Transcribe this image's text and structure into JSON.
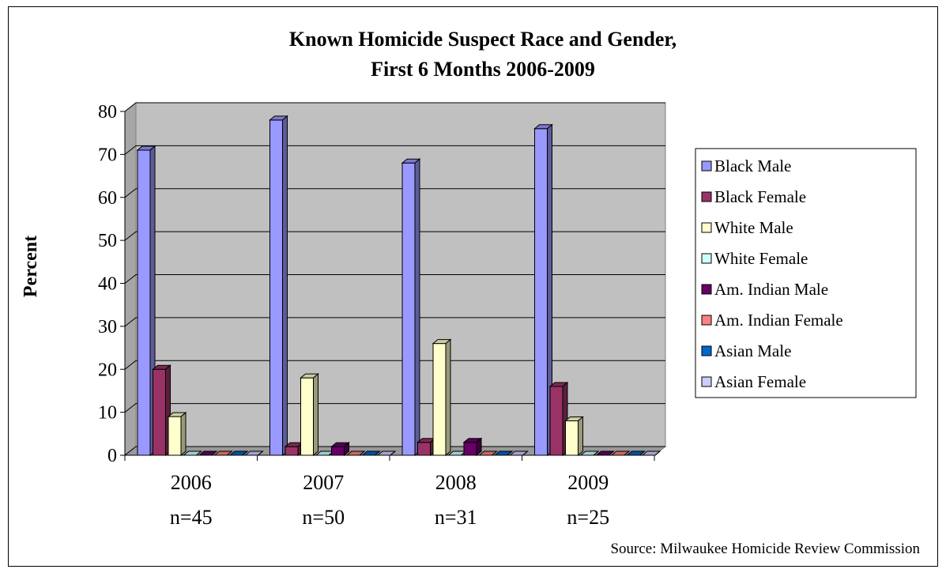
{
  "chart_data": {
    "type": "bar",
    "title": "Known Homicide Suspect Race and Gender,",
    "subtitle": "First 6 Months 2006-2009",
    "ylabel": "Percent",
    "xlabel": "",
    "ylim": [
      0,
      80
    ],
    "yticks": [
      0,
      10,
      20,
      30,
      40,
      50,
      60,
      70,
      80
    ],
    "grid": true,
    "legend_position": "right",
    "categories": [
      "2006",
      "2007",
      "2008",
      "2009"
    ],
    "category_sublabels": [
      "n=45",
      "n=50",
      "n=31",
      "n=25"
    ],
    "series": [
      {
        "name": "Black Male",
        "color": "#9999ff",
        "values": [
          71,
          78,
          68,
          76
        ]
      },
      {
        "name": "Black Female",
        "color": "#993366",
        "values": [
          20,
          2,
          3,
          16
        ]
      },
      {
        "name": "White Male",
        "color": "#ffffcc",
        "values": [
          9,
          18,
          26,
          8
        ]
      },
      {
        "name": "White Female",
        "color": "#ccffff",
        "values": [
          0,
          0,
          0,
          0
        ]
      },
      {
        "name": "Am. Indian Male",
        "color": "#660066",
        "values": [
          0,
          2,
          3,
          0
        ]
      },
      {
        "name": "Am. Indian Female",
        "color": "#ff8080",
        "values": [
          0,
          0,
          0,
          0
        ]
      },
      {
        "name": "Asian Male",
        "color": "#0066cc",
        "values": [
          0,
          0,
          0,
          0
        ]
      },
      {
        "name": "Asian Female",
        "color": "#ccccff",
        "values": [
          0,
          0,
          0,
          0
        ]
      }
    ],
    "source": "Source: Milwaukee Homicide Review Commission",
    "plot_background": "#c0c0c0"
  }
}
